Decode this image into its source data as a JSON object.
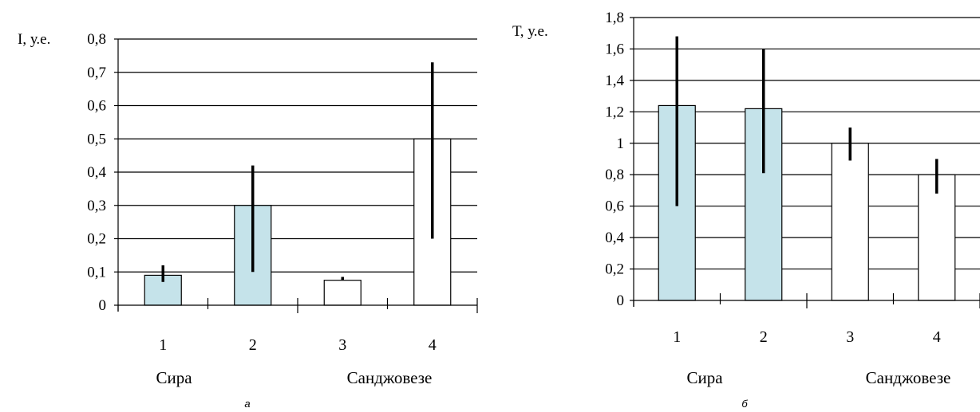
{
  "chart_data": [
    {
      "type": "bar",
      "panel_label": "а",
      "ylabel": "I, у.е.",
      "ylim": [
        0,
        0.8
      ],
      "yticks": [
        "0",
        "0,1",
        "0,2",
        "0,3",
        "0,4",
        "0,5",
        "0,6",
        "0,7",
        "0,8"
      ],
      "grid": true,
      "categories": [
        "1",
        "2",
        "3",
        "4"
      ],
      "groups": [
        "Сира",
        "Санджовезе"
      ],
      "values": [
        0.09,
        0.3,
        0.075,
        0.5
      ],
      "error_low": [
        0.07,
        0.1,
        0.075,
        0.2
      ],
      "error_high": [
        0.12,
        0.42,
        0.085,
        0.73
      ],
      "bar_colors": [
        "#c5e3ea",
        "#c5e3ea",
        "#ffffff",
        "#ffffff"
      ]
    },
    {
      "type": "bar",
      "panel_label": "б",
      "ylabel": "Т, у.е.",
      "ylim": [
        0,
        1.8
      ],
      "yticks": [
        "0",
        "0,2",
        "0,4",
        "0,6",
        "0,8",
        "1",
        "1,2",
        "1,4",
        "1,6",
        "1,8"
      ],
      "grid": true,
      "categories": [
        "1",
        "2",
        "3",
        "4"
      ],
      "groups": [
        "Сира",
        "Санджовезе"
      ],
      "values": [
        1.24,
        1.22,
        1.0,
        0.8
      ],
      "error_low": [
        0.6,
        0.81,
        0.89,
        0.68
      ],
      "error_high": [
        1.68,
        1.6,
        1.1,
        0.9
      ],
      "bar_colors": [
        "#c5e3ea",
        "#c5e3ea",
        "#ffffff",
        "#ffffff"
      ]
    }
  ]
}
